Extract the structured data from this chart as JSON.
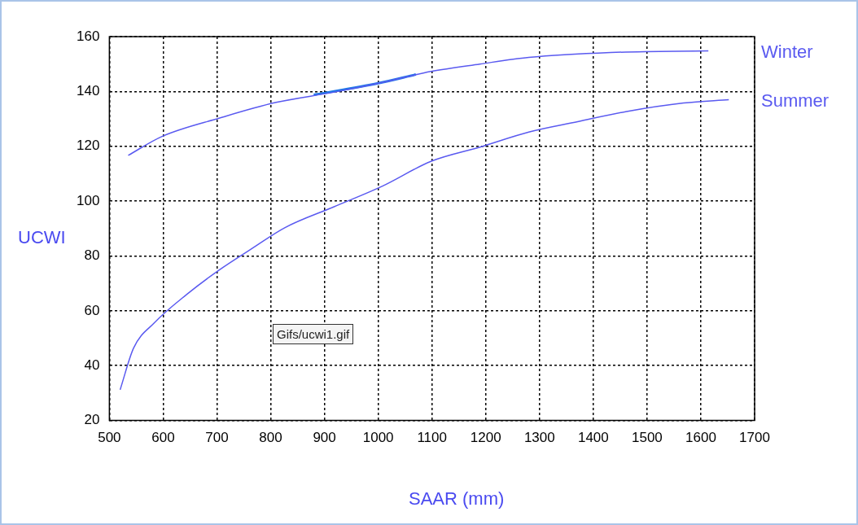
{
  "chart_data": {
    "type": "line",
    "xlabel": "SAAR (mm)",
    "ylabel": "UCWI",
    "xlim": [
      500,
      1700
    ],
    "xticks": [
      500,
      600,
      700,
      800,
      900,
      1000,
      1100,
      1200,
      1300,
      1400,
      1500,
      1600,
      1700
    ],
    "ylim": [
      20,
      160
    ],
    "yticks": [
      20,
      40,
      60,
      80,
      100,
      120,
      140,
      160
    ],
    "grid": true,
    "legend": false,
    "marker": "none",
    "line_style": "solid",
    "annotations": [
      "Gifs/ucwi1.gif"
    ],
    "series": [
      {
        "name": "Winter",
        "color": "#5a5af0",
        "x": [
          535,
          598,
          705,
          810,
          917,
          1008,
          1098,
          1189,
          1280,
          1432,
          1614
        ],
        "values": [
          116.7,
          123.6,
          130.3,
          136,
          139.7,
          143.3,
          147.3,
          150,
          152.4,
          154.2,
          154.8
        ]
      },
      {
        "name": "Summer",
        "color": "#5a5af0",
        "x": [
          520,
          545,
          583,
          644,
          705,
          765,
          826,
          917,
          1008,
          1098,
          1189,
          1280,
          1371,
          1462,
          1568,
          1652
        ],
        "values": [
          31.2,
          46.4,
          55.5,
          66,
          75,
          82.7,
          90.3,
          97.9,
          105.5,
          114.5,
          119.7,
          125.2,
          129,
          132.7,
          135.8,
          137
        ]
      },
      {
        "color": "#1e78e6",
        "x": [
          880,
          1000,
          1070
        ],
        "values": [
          138.8,
          143,
          146.2
        ]
      }
    ]
  }
}
